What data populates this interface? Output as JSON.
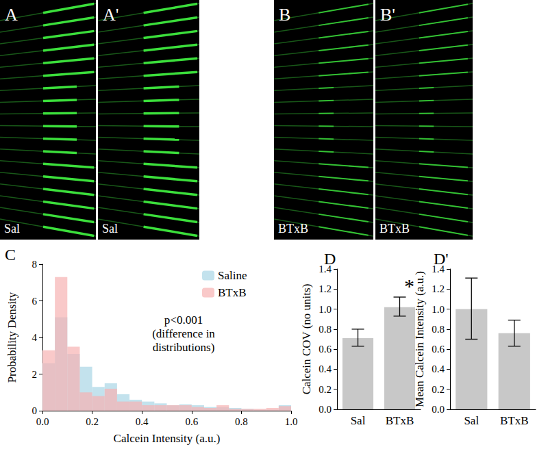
{
  "images": [
    {
      "label": "A",
      "caption": "Sal"
    },
    {
      "label": "A'",
      "caption": "Sal"
    },
    {
      "label": "B",
      "caption": "BTxB"
    },
    {
      "label": "B'",
      "caption": "BTxB"
    }
  ],
  "chart_data": [
    {
      "type": "histogram",
      "title": "C",
      "xlabel": "Calcein Intensity (a.u.)",
      "ylabel": "Probability Density",
      "bins": [
        0,
        0.05,
        0.1,
        0.15,
        0.2,
        0.25,
        0.3,
        0.35,
        0.4,
        0.45,
        0.5,
        0.55,
        0.6,
        0.65,
        0.7,
        0.75,
        0.8,
        0.85,
        0.9,
        0.95,
        1
      ],
      "series": [
        {
          "name": "Saline",
          "color": "#a9d6e5",
          "values": [
            2.6,
            5.1,
            3.1,
            2.4,
            1.3,
            1.5,
            0.9,
            0.6,
            0.5,
            0.4,
            0.3,
            0.35,
            0.3,
            0.2,
            0.2,
            0.15,
            0.1,
            0.05,
            0.05,
            0.3
          ]
        },
        {
          "name": "BTxB",
          "color": "#f7b2b2",
          "values": [
            3.3,
            7.3,
            3.5,
            1.0,
            0.8,
            1.2,
            0.5,
            0.5,
            0.3,
            0.3,
            0.3,
            0.3,
            0.2,
            0.15,
            0.3,
            0.1,
            0.1,
            0.1,
            0.15,
            0.25
          ]
        }
      ],
      "xlim": [
        0,
        1
      ],
      "xticks": [
        {
          "value": 0,
          "label": "0.0"
        },
        0.2,
        0.4,
        0.6,
        0.8,
        {
          "value": 1,
          "label": "1.0"
        }
      ],
      "ylim": [
        0,
        8
      ],
      "yticks": [
        0,
        2,
        4,
        6,
        8
      ],
      "annotation": "p<0.001\n(difference in\ndistributions)",
      "legend": "upper right",
      "grid": false
    },
    {
      "type": "bar",
      "title": "D",
      "ylabel": "Calcein COV (no units)",
      "categories": [
        "Sal",
        "BTxB"
      ],
      "values": [
        0.71,
        1.02
      ],
      "color": "#c8c8c8",
      "error_ranges": [
        [
          0.63,
          0.8
        ],
        [
          0.93,
          1.12
        ]
      ],
      "annotation": {
        "category": "BTxB",
        "text": "*"
      },
      "ylim": [
        0,
        1.4
      ],
      "yticks": [
        {
          "value": 0,
          "label": "0.0"
        },
        0.2,
        0.4,
        0.6,
        0.8,
        {
          "value": 1,
          "label": "1.0"
        },
        1.2,
        1.4
      ],
      "grid": false
    },
    {
      "type": "bar",
      "title": "D'",
      "ylabel": "Mean Calcein Intensity (a.u.)",
      "categories": [
        "Sal",
        "BTxB"
      ],
      "values": [
        1.0,
        0.76
      ],
      "color": "#c8c8c8",
      "error_ranges": [
        [
          0.7,
          1.31
        ],
        [
          0.63,
          0.89
        ]
      ],
      "ylim": [
        0,
        1.4
      ],
      "yticks": [
        {
          "value": 0,
          "label": "0.0"
        },
        0.2,
        0.4,
        0.6,
        0.8,
        {
          "value": 1,
          "label": "1.0"
        },
        1.2,
        1.4
      ],
      "grid": false
    }
  ]
}
